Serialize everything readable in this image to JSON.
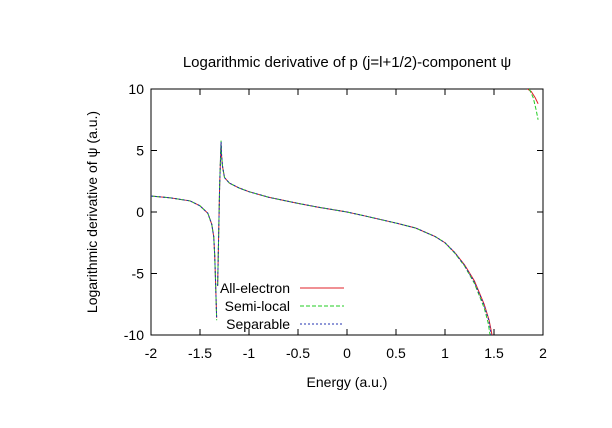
{
  "chart_data": {
    "type": "line",
    "title": "Logarithmic derivative of p (j=l+1/2)-component ψ",
    "xlabel": "Energy (a.u.)",
    "ylabel": "Logarithmic derivative of ψ (a.u.)",
    "xlim": [
      -2,
      2
    ],
    "ylim": [
      -10,
      10
    ],
    "x_ticks": [
      -2,
      -1.5,
      -1,
      -0.5,
      0,
      0.5,
      1,
      1.5,
      2
    ],
    "x_tick_labels": [
      "-2",
      "-1.5",
      "-1",
      "-0.5",
      "0",
      "0.5",
      "1",
      "1.5",
      "2"
    ],
    "y_ticks": [
      -10,
      -5,
      0,
      5,
      10
    ],
    "y_tick_labels": [
      "-10",
      "-5",
      "0",
      "5",
      "10"
    ],
    "grid": false,
    "legend_position": "bottom-left",
    "colors": {
      "all_electron": "#e0202a",
      "semi_local": "#22cc22",
      "separable": "#2030b0"
    },
    "series": [
      {
        "name": "All-electron",
        "style": "solid",
        "segments": [
          [
            [
              -2.0,
              1.3
            ],
            [
              -1.8,
              1.15
            ],
            [
              -1.6,
              0.9
            ],
            [
              -1.5,
              0.5
            ],
            [
              -1.42,
              -0.1
            ],
            [
              -1.38,
              -1.0
            ],
            [
              -1.36,
              -2.0
            ],
            [
              -1.35,
              -3.5
            ],
            [
              -1.34,
              -6.0
            ],
            [
              -1.33,
              -8.6
            ]
          ],
          [
            [
              -1.32,
              -6.0
            ],
            [
              -1.31,
              -2.0
            ],
            [
              -1.3,
              2.0
            ],
            [
              -1.29,
              4.5
            ],
            [
              -1.285,
              5.6
            ],
            [
              -1.28,
              4.6
            ],
            [
              -1.27,
              3.7
            ],
            [
              -1.25,
              2.8
            ],
            [
              -1.2,
              2.35
            ],
            [
              -1.1,
              1.95
            ],
            [
              -1.0,
              1.65
            ],
            [
              -0.8,
              1.2
            ],
            [
              -0.5,
              0.7
            ],
            [
              -0.3,
              0.4
            ],
            [
              0.0,
              0.0
            ],
            [
              0.2,
              -0.35
            ],
            [
              0.5,
              -0.9
            ],
            [
              0.7,
              -1.3
            ],
            [
              0.9,
              -2.0
            ],
            [
              1.0,
              -2.5
            ],
            [
              1.1,
              -3.3
            ],
            [
              1.2,
              -4.3
            ],
            [
              1.3,
              -5.6
            ],
            [
              1.4,
              -7.5
            ],
            [
              1.45,
              -8.8
            ],
            [
              1.48,
              -10.0
            ]
          ],
          [
            [
              1.84,
              10.0
            ],
            [
              1.88,
              9.8
            ],
            [
              1.92,
              9.3
            ],
            [
              1.95,
              8.8
            ]
          ]
        ]
      },
      {
        "name": "Semi-local",
        "style": "dashed",
        "segments": [
          [
            [
              -2.0,
              1.3
            ],
            [
              -1.8,
              1.15
            ],
            [
              -1.6,
              0.9
            ],
            [
              -1.5,
              0.5
            ],
            [
              -1.42,
              -0.1
            ],
            [
              -1.38,
              -1.0
            ],
            [
              -1.36,
              -2.0
            ],
            [
              -1.35,
              -3.5
            ],
            [
              -1.34,
              -6.0
            ],
            [
              -1.33,
              -8.8
            ]
          ],
          [
            [
              -1.32,
              -6.0
            ],
            [
              -1.31,
              -2.0
            ],
            [
              -1.3,
              2.0
            ],
            [
              -1.29,
              4.7
            ],
            [
              -1.285,
              5.8
            ],
            [
              -1.28,
              4.7
            ],
            [
              -1.27,
              3.7
            ],
            [
              -1.25,
              2.8
            ],
            [
              -1.2,
              2.35
            ],
            [
              -1.1,
              1.95
            ],
            [
              -1.0,
              1.65
            ],
            [
              -0.8,
              1.2
            ],
            [
              -0.5,
              0.7
            ],
            [
              -0.3,
              0.4
            ],
            [
              0.0,
              0.0
            ],
            [
              0.2,
              -0.35
            ],
            [
              0.5,
              -0.9
            ],
            [
              0.7,
              -1.3
            ],
            [
              0.9,
              -2.0
            ],
            [
              1.0,
              -2.5
            ],
            [
              1.1,
              -3.35
            ],
            [
              1.2,
              -4.4
            ],
            [
              1.3,
              -5.8
            ],
            [
              1.4,
              -7.8
            ],
            [
              1.44,
              -9.0
            ],
            [
              1.46,
              -10.0
            ]
          ],
          [
            [
              1.86,
              10.0
            ],
            [
              1.9,
              9.3
            ],
            [
              1.93,
              8.3
            ],
            [
              1.95,
              7.5
            ]
          ]
        ]
      },
      {
        "name": "Separable",
        "style": "dotted",
        "segments": [
          [
            [
              -2.0,
              1.3
            ],
            [
              -1.8,
              1.15
            ],
            [
              -1.6,
              0.9
            ],
            [
              -1.5,
              0.5
            ],
            [
              -1.42,
              -0.1
            ],
            [
              -1.38,
              -1.0
            ],
            [
              -1.36,
              -2.0
            ],
            [
              -1.35,
              -3.5
            ],
            [
              -1.34,
              -6.0
            ],
            [
              -1.33,
              -8.7
            ]
          ],
          [
            [
              -1.32,
              -6.0
            ],
            [
              -1.31,
              -2.0
            ],
            [
              -1.3,
              2.0
            ],
            [
              -1.29,
              4.6
            ],
            [
              -1.285,
              5.7
            ],
            [
              -1.28,
              4.6
            ],
            [
              -1.27,
              3.7
            ],
            [
              -1.25,
              2.8
            ],
            [
              -1.2,
              2.35
            ],
            [
              -1.1,
              1.95
            ],
            [
              -1.0,
              1.65
            ],
            [
              -0.8,
              1.2
            ],
            [
              -0.5,
              0.7
            ],
            [
              -0.3,
              0.4
            ],
            [
              0.0,
              0.0
            ],
            [
              0.2,
              -0.35
            ],
            [
              0.5,
              -0.9
            ],
            [
              0.7,
              -1.3
            ],
            [
              0.9,
              -2.0
            ],
            [
              1.0,
              -2.5
            ],
            [
              1.1,
              -3.3
            ],
            [
              1.2,
              -4.35
            ],
            [
              1.3,
              -5.7
            ],
            [
              1.4,
              -7.6
            ],
            [
              1.45,
              -8.9
            ],
            [
              1.47,
              -10.0
            ]
          ]
        ]
      }
    ]
  }
}
